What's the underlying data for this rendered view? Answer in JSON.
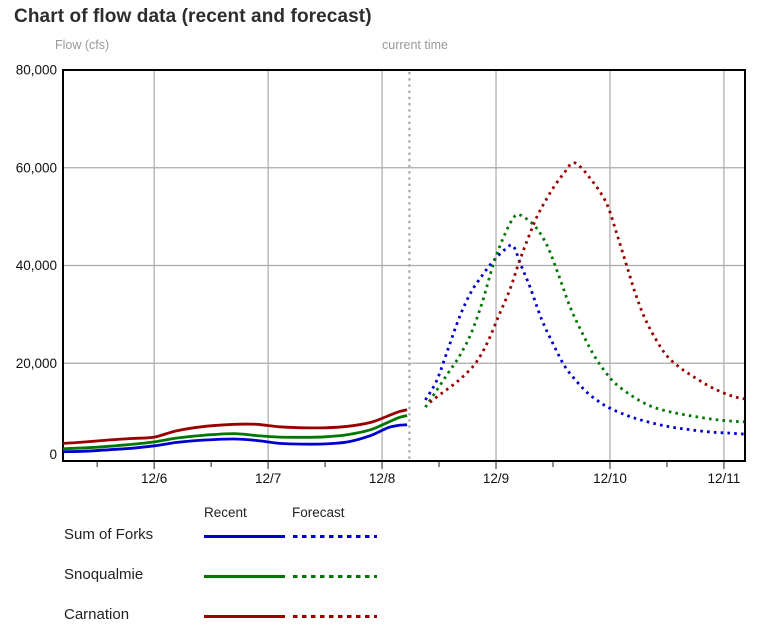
{
  "title": "Chart of flow data (recent and forecast)",
  "flow_axis_label": "Flow (cfs)",
  "current_time_label": "current time",
  "colors": {
    "sum_of_forks": "#0000cc",
    "snoqualmie": "#007700",
    "carnation": "#990000",
    "axis": "#000000",
    "grid": "#aaaaaa",
    "current_time_line": "#a6a6a6",
    "tick_text": "#111111",
    "muted_text": "#999999"
  },
  "chart_data": {
    "type": "line",
    "title": "Chart of flow data (recent and forecast)",
    "xlabel": "",
    "ylabel": "Flow (cfs)",
    "ylim": [
      0,
      80000
    ],
    "xlim_days": [
      5.2,
      11.185
    ],
    "grid": true,
    "current_time_day": 8.24,
    "y_ticks": [
      {
        "value": 0,
        "label": "0"
      },
      {
        "value": 20000,
        "label": "20,000"
      },
      {
        "value": 40000,
        "label": "40,000"
      },
      {
        "value": 60000,
        "label": "60,000"
      },
      {
        "value": 80000,
        "label": "80,000"
      }
    ],
    "x_ticks": [
      {
        "day": 6,
        "label": "12/6"
      },
      {
        "day": 7,
        "label": "12/7"
      },
      {
        "day": 8,
        "label": "12/8"
      },
      {
        "day": 9,
        "label": "12/9"
      },
      {
        "day": 10,
        "label": "12/10"
      },
      {
        "day": 11,
        "label": "12/11"
      }
    ],
    "series": [
      {
        "name": "Sum of Forks",
        "segment": "recent",
        "line": "solid",
        "color": "#0000cc",
        "points": [
          [
            5.2,
            1900
          ],
          [
            5.4,
            2000
          ],
          [
            5.6,
            2300
          ],
          [
            5.8,
            2600
          ],
          [
            6.0,
            3100
          ],
          [
            6.2,
            3800
          ],
          [
            6.45,
            4300
          ],
          [
            6.7,
            4500
          ],
          [
            6.9,
            4200
          ],
          [
            7.1,
            3600
          ],
          [
            7.3,
            3450
          ],
          [
            7.5,
            3500
          ],
          [
            7.7,
            3900
          ],
          [
            7.9,
            5200
          ],
          [
            8.05,
            6800
          ],
          [
            8.15,
            7300
          ],
          [
            8.22,
            7400
          ]
        ]
      },
      {
        "name": "Snoqualmie",
        "segment": "recent",
        "line": "solid",
        "color": "#007700",
        "points": [
          [
            5.2,
            2500
          ],
          [
            5.4,
            2700
          ],
          [
            5.6,
            3000
          ],
          [
            5.8,
            3400
          ],
          [
            6.0,
            3900
          ],
          [
            6.2,
            4700
          ],
          [
            6.45,
            5300
          ],
          [
            6.7,
            5600
          ],
          [
            6.9,
            5200
          ],
          [
            7.1,
            4900
          ],
          [
            7.3,
            4850
          ],
          [
            7.5,
            4950
          ],
          [
            7.7,
            5400
          ],
          [
            7.9,
            6400
          ],
          [
            8.05,
            7900
          ],
          [
            8.15,
            8900
          ],
          [
            8.22,
            9300
          ]
        ]
      },
      {
        "name": "Carnation",
        "segment": "recent",
        "line": "solid",
        "color": "#990000",
        "points": [
          [
            5.2,
            3600
          ],
          [
            5.4,
            3900
          ],
          [
            5.6,
            4300
          ],
          [
            5.8,
            4600
          ],
          [
            6.0,
            4900
          ],
          [
            6.2,
            6200
          ],
          [
            6.45,
            7100
          ],
          [
            6.7,
            7500
          ],
          [
            6.9,
            7500
          ],
          [
            7.1,
            7000
          ],
          [
            7.3,
            6800
          ],
          [
            7.5,
            6800
          ],
          [
            7.7,
            7100
          ],
          [
            7.9,
            7900
          ],
          [
            8.05,
            9200
          ],
          [
            8.15,
            10100
          ],
          [
            8.22,
            10500
          ]
        ]
      },
      {
        "name": "Sum of Forks",
        "segment": "forecast",
        "line": "dotted",
        "color": "#0000cc",
        "points": [
          [
            8.38,
            12500
          ],
          [
            8.48,
            16500
          ],
          [
            8.58,
            23000
          ],
          [
            8.68,
            29500
          ],
          [
            8.78,
            34500
          ],
          [
            8.88,
            38000
          ],
          [
            8.98,
            41000
          ],
          [
            9.08,
            43300
          ],
          [
            9.15,
            44000
          ],
          [
            9.22,
            40000
          ],
          [
            9.3,
            35500
          ],
          [
            9.4,
            29000
          ],
          [
            9.5,
            24000
          ],
          [
            9.6,
            19500
          ],
          [
            9.7,
            16500
          ],
          [
            9.8,
            14000
          ],
          [
            9.9,
            12200
          ],
          [
            10.0,
            10800
          ],
          [
            10.15,
            9300
          ],
          [
            10.3,
            8200
          ],
          [
            10.5,
            7100
          ],
          [
            10.7,
            6400
          ],
          [
            10.9,
            5900
          ],
          [
            11.05,
            5700
          ],
          [
            11.18,
            5500
          ]
        ]
      },
      {
        "name": "Snoqualmie",
        "segment": "forecast",
        "line": "dotted",
        "color": "#007700",
        "points": [
          [
            8.38,
            11000
          ],
          [
            8.48,
            14500
          ],
          [
            8.58,
            18000
          ],
          [
            8.68,
            21500
          ],
          [
            8.78,
            26000
          ],
          [
            8.88,
            32500
          ],
          [
            8.98,
            40500
          ],
          [
            9.08,
            46500
          ],
          [
            9.17,
            50200
          ],
          [
            9.25,
            49800
          ],
          [
            9.35,
            47800
          ],
          [
            9.45,
            44000
          ],
          [
            9.55,
            38000
          ],
          [
            9.65,
            31500
          ],
          [
            9.75,
            26500
          ],
          [
            9.85,
            22000
          ],
          [
            9.95,
            18500
          ],
          [
            10.05,
            15800
          ],
          [
            10.2,
            13200
          ],
          [
            10.35,
            11300
          ],
          [
            10.5,
            10200
          ],
          [
            10.65,
            9500
          ],
          [
            10.8,
            8900
          ],
          [
            10.95,
            8400
          ],
          [
            11.1,
            8100
          ],
          [
            11.18,
            8000
          ]
        ]
      },
      {
        "name": "Carnation",
        "segment": "forecast",
        "line": "dotted",
        "color": "#990000",
        "points": [
          [
            8.42,
            12000
          ],
          [
            8.52,
            13800
          ],
          [
            8.62,
            15500
          ],
          [
            8.72,
            17500
          ],
          [
            8.82,
            20000
          ],
          [
            8.92,
            24000
          ],
          [
            9.02,
            29500
          ],
          [
            9.12,
            35000
          ],
          [
            9.2,
            40500
          ],
          [
            9.28,
            45500
          ],
          [
            9.36,
            50000
          ],
          [
            9.44,
            53500
          ],
          [
            9.52,
            56500
          ],
          [
            9.6,
            59000
          ],
          [
            9.67,
            61000
          ],
          [
            9.74,
            60200
          ],
          [
            9.82,
            58000
          ],
          [
            9.9,
            55500
          ],
          [
            9.98,
            52200
          ],
          [
            10.06,
            46500
          ],
          [
            10.14,
            40500
          ],
          [
            10.22,
            34500
          ],
          [
            10.3,
            29500
          ],
          [
            10.4,
            25000
          ],
          [
            10.5,
            21500
          ],
          [
            10.62,
            19000
          ],
          [
            10.75,
            17000
          ],
          [
            10.88,
            15200
          ],
          [
            11.0,
            13900
          ],
          [
            11.1,
            13100
          ],
          [
            11.18,
            12700
          ]
        ]
      }
    ]
  },
  "legend": {
    "col_headers": [
      "Recent",
      "Forecast"
    ],
    "rows": [
      {
        "label": "Sum of Forks",
        "color": "#0000cc"
      },
      {
        "label": "Snoqualmie",
        "color": "#007700"
      },
      {
        "label": "Carnation",
        "color": "#990000"
      }
    ]
  }
}
